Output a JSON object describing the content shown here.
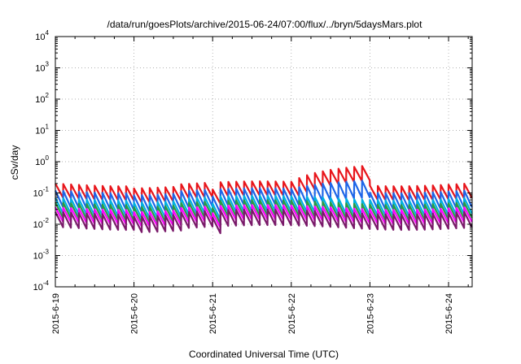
{
  "chart_data": {
    "type": "line",
    "title": "/data/run/goesPlots/archive/2015-06-24/07:00/flux/../bryn/5daysMars.plot",
    "xlabel": "Coordinated Universal Time (UTC)",
    "ylabel": "cSv/day",
    "yscale": "log",
    "ylim": [
      0.0001,
      10000
    ],
    "xlim": [
      0,
      5.3
    ],
    "grid": true,
    "x_tick_labels": [
      "2015-6-19",
      "2015-6-20",
      "2015-6-21",
      "2015-6-22",
      "2015-6-23",
      "2015-6-24"
    ],
    "y_tick_labels": [
      {
        "base": "10",
        "exp": "4"
      },
      {
        "base": "10",
        "exp": "3"
      },
      {
        "base": "10",
        "exp": "2"
      },
      {
        "base": "10",
        "exp": "1"
      },
      {
        "base": "10",
        "exp": "0"
      },
      {
        "base": "10",
        "exp": "-1"
      },
      {
        "base": "10",
        "exp": "-2"
      },
      {
        "base": "10",
        "exp": "-3"
      },
      {
        "base": "10",
        "exp": "-4"
      }
    ],
    "sawtooth_period_days": 0.1,
    "series": [
      {
        "color": "#e8151b",
        "peaks": [
          0.2,
          0.16,
          0.16,
          0.16,
          0.16,
          0.16,
          0.16,
          0.15,
          0.15,
          0.15,
          0.14,
          0.14,
          0.12,
          0.12,
          0.12,
          0.12,
          0.12,
          0.12,
          0.12,
          0.11,
          0.11,
          0.11,
          0.11,
          0.11,
          0.11,
          0.11,
          0.11,
          0.11,
          0.11,
          0.11,
          0.11,
          0.11,
          0.11,
          0.11,
          0.11,
          0.11,
          0.11,
          0.11,
          0.11,
          0.11,
          0.11,
          0.11,
          0.11,
          0.11,
          0.11,
          0.11,
          0.11,
          0.11,
          0.11,
          0.11,
          0.11,
          0.11,
          0.11,
          0.11,
          0.11,
          0.11,
          0.11,
          0.11,
          0.11,
          0.11,
          0.11,
          0.11,
          0.11,
          0.11,
          0.11,
          0.11,
          0.11,
          0.11,
          0.11,
          0.11,
          0.11,
          0.11,
          0.11,
          0.11,
          0.11,
          0.11,
          0.11,
          0.11,
          0.11,
          0.11,
          0.11,
          0.11,
          0.11,
          0.11,
          0.11,
          0.11,
          0.11,
          0.11,
          0.11,
          0.11,
          0.11,
          0.11,
          0.11,
          0.11,
          0.11,
          0.11,
          0.11,
          0.11,
          0.11,
          0.11,
          0.11,
          0.11,
          0.11,
          0.11,
          0.11,
          0.11,
          0.11,
          0.11,
          0.11,
          0.11,
          0.11,
          0.11,
          0.11,
          0.11,
          0.11,
          0.11,
          0.11,
          0.11,
          0.11,
          0.11,
          0.11,
          0.11,
          0.11,
          0.11,
          0.11,
          0.11,
          0.11,
          0.11,
          0.11,
          0.11,
          0.11,
          0.11,
          0.11,
          0.11,
          0.11,
          0.11,
          0.11,
          0.11,
          0.11,
          0.11,
          0.11,
          0.11,
          0.11,
          0.11,
          0.11,
          0.11,
          0.11,
          0.11,
          0.11,
          0.11,
          0.11,
          0.11,
          0.11,
          0.11,
          0.11
        ],
        "troughs": [
          0.07
        ]
      },
      {
        "color": "#1e66e8",
        "peaks": [
          0.12
        ],
        "troughs": [
          0.035
        ]
      },
      {
        "color": "#00b0e0",
        "peaks": [
          0.07
        ],
        "troughs": [
          0.022
        ]
      },
      {
        "color": "#2a9a46",
        "peaks": [
          0.05
        ],
        "troughs": [
          0.016
        ]
      },
      {
        "color": "#ff00ff",
        "peaks": [
          0.035
        ],
        "troughs": [
          0.012
        ]
      },
      {
        "color": "#7a1a6a",
        "peaks": [
          0.025
        ],
        "troughs": [
          0.008
        ]
      }
    ]
  }
}
